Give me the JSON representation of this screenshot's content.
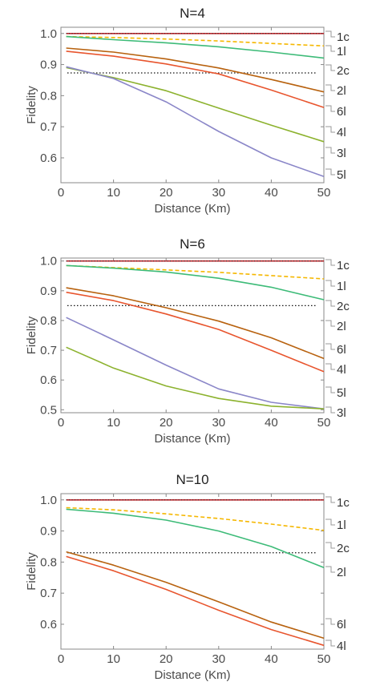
{
  "chart_data": [
    {
      "type": "line",
      "title": "N=4",
      "xlabel": "Distance (Km)",
      "ylabel": "Fidelity",
      "xlim": [
        0,
        50
      ],
      "ylim": [
        0.52,
        1.02
      ],
      "xticks": [
        0,
        10,
        20,
        30,
        40,
        50
      ],
      "yticks": [
        0.6,
        0.7,
        0.8,
        0.9,
        1.0
      ],
      "ytick_labels": [
        "0.6",
        "0.7",
        "0.8",
        "0.9",
        "1.0"
      ],
      "grid": false,
      "legend_position": "right of plot, labels at line ends",
      "threshold": 0.873,
      "series": [
        {
          "name": "1c",
          "color": "#c0282e",
          "dash": "solid",
          "x": [
            1,
            50
          ],
          "y": [
            1.0,
            1.0
          ]
        },
        {
          "name": "1l",
          "color": "#f5b700",
          "dash": "dashed",
          "x": [
            1,
            10,
            20,
            30,
            40,
            50
          ],
          "y": [
            0.99,
            0.987,
            0.982,
            0.976,
            0.968,
            0.96
          ]
        },
        {
          "name": "2c",
          "color": "#3dbb78",
          "dash": "solid",
          "x": [
            1,
            10,
            20,
            30,
            40,
            50
          ],
          "y": [
            0.99,
            0.98,
            0.97,
            0.957,
            0.94,
            0.921
          ]
        },
        {
          "name": "2l",
          "color": "#b8620f",
          "dash": "solid",
          "x": [
            1,
            10,
            20,
            30,
            40,
            50
          ],
          "y": [
            0.953,
            0.94,
            0.918,
            0.889,
            0.852,
            0.812
          ]
        },
        {
          "name": "6l",
          "color": "#e8552e",
          "dash": "solid",
          "x": [
            1,
            10,
            20,
            30,
            40,
            50
          ],
          "y": [
            0.943,
            0.927,
            0.902,
            0.87,
            0.818,
            0.762
          ]
        },
        {
          "name": "4l",
          "color": "#8cb22e",
          "dash": "solid",
          "x": [
            1,
            10,
            20,
            30,
            40,
            50
          ],
          "y": [
            0.89,
            0.858,
            0.816,
            0.76,
            0.705,
            0.652
          ]
        },
        {
          "name": "3l",
          "color": "#8a86c8",
          "dash": "solid",
          "x": [
            1,
            10,
            20,
            30,
            40,
            50
          ],
          "y": [
            0.893,
            0.855,
            0.78,
            0.685,
            0.6,
            0.54
          ]
        },
        {
          "name": "5l",
          "color": "#8a86c8",
          "dash": "solid",
          "x": [],
          "y": []
        }
      ],
      "legend_labels": [
        "1c",
        "1l",
        "2c",
        "2l",
        "6l",
        "4l",
        "3l",
        "5l"
      ]
    },
    {
      "type": "line",
      "title": "N=6",
      "xlabel": "Distance (Km)",
      "ylabel": "Fidelity",
      "xlim": [
        0,
        50
      ],
      "ylim": [
        0.49,
        1.01
      ],
      "xticks": [
        0,
        10,
        20,
        30,
        40,
        50
      ],
      "yticks": [
        0.5,
        0.6,
        0.7,
        0.8,
        0.9,
        1.0
      ],
      "ytick_labels": [
        "0.5",
        "0.6",
        "0.7",
        "0.8",
        "0.9",
        "1.0"
      ],
      "grid": false,
      "legend_position": "right of plot, labels at line ends",
      "threshold": 0.85,
      "series": [
        {
          "name": "1c",
          "color": "#c0282e",
          "dash": "solid",
          "x": [
            1,
            50
          ],
          "y": [
            1.0,
            1.0
          ]
        },
        {
          "name": "1l",
          "color": "#f5b700",
          "dash": "dashed",
          "x": [
            1,
            10,
            20,
            30,
            40,
            50
          ],
          "y": [
            0.985,
            0.978,
            0.97,
            0.962,
            0.951,
            0.94
          ]
        },
        {
          "name": "2c",
          "color": "#3dbb78",
          "dash": "solid",
          "x": [
            1,
            10,
            20,
            30,
            40,
            50
          ],
          "y": [
            0.985,
            0.976,
            0.963,
            0.942,
            0.912,
            0.87
          ]
        },
        {
          "name": "2l",
          "color": "#b8620f",
          "dash": "solid",
          "x": [
            1,
            10,
            20,
            30,
            40,
            50
          ],
          "y": [
            0.91,
            0.883,
            0.843,
            0.798,
            0.742,
            0.672
          ]
        },
        {
          "name": "6l",
          "color": "#e8552e",
          "dash": "solid",
          "x": [
            1,
            10,
            20,
            30,
            40,
            50
          ],
          "y": [
            0.895,
            0.867,
            0.822,
            0.77,
            0.7,
            0.628
          ]
        },
        {
          "name": "4l",
          "color": "#8a86c8",
          "dash": "solid",
          "x": [
            1,
            10,
            20,
            30,
            40,
            50
          ],
          "y": [
            0.81,
            0.735,
            0.65,
            0.57,
            0.525,
            0.503
          ]
        },
        {
          "name": "5l",
          "color": "#8cb22e",
          "dash": "solid",
          "x": [
            1,
            10,
            20,
            30,
            40,
            50
          ],
          "y": [
            0.71,
            0.64,
            0.58,
            0.538,
            0.512,
            0.503
          ]
        },
        {
          "name": "3l",
          "color": "#8cb22e",
          "dash": "solid",
          "x": [],
          "y": []
        }
      ],
      "legend_labels": [
        "1c",
        "1l",
        "2c",
        "2l",
        "6l",
        "4l",
        "5l",
        "3l"
      ]
    },
    {
      "type": "line",
      "title": "N=10",
      "xlabel": "Distance (Km)",
      "ylabel": "Fidelity",
      "xlim": [
        0,
        50
      ],
      "ylim": [
        0.52,
        1.02
      ],
      "xticks": [
        0,
        10,
        20,
        30,
        40,
        50
      ],
      "yticks": [
        0.6,
        0.7,
        0.8,
        0.9,
        1.0
      ],
      "ytick_labels": [
        "0.6",
        "0.7",
        "0.8",
        "0.9",
        "1.0"
      ],
      "grid": false,
      "legend_position": "right of plot, labels at line ends",
      "threshold": 0.83,
      "series": [
        {
          "name": "1c",
          "color": "#c0282e",
          "dash": "solid",
          "x": [
            1,
            50
          ],
          "y": [
            1.0,
            1.0
          ]
        },
        {
          "name": "1l",
          "color": "#f5b700",
          "dash": "dashed",
          "x": [
            1,
            10,
            20,
            30,
            40,
            50
          ],
          "y": [
            0.975,
            0.968,
            0.955,
            0.94,
            0.922,
            0.902
          ]
        },
        {
          "name": "2c",
          "color": "#3dbb78",
          "dash": "solid",
          "x": [
            1,
            10,
            20,
            30,
            40,
            50
          ],
          "y": [
            0.97,
            0.957,
            0.935,
            0.9,
            0.85,
            0.782
          ]
        },
        {
          "name": "2l",
          "color": "#b8620f",
          "dash": "solid",
          "x": [
            1,
            10,
            20,
            30,
            40,
            50
          ],
          "y": [
            0.833,
            0.79,
            0.735,
            0.672,
            0.607,
            0.555
          ]
        },
        {
          "name": "6l",
          "color": "#e8552e",
          "dash": "solid",
          "x": [
            1,
            10,
            20,
            30,
            40,
            50
          ],
          "y": [
            0.818,
            0.772,
            0.712,
            0.645,
            0.583,
            0.532
          ]
        },
        {
          "name": "4l",
          "color": "#e8552e",
          "dash": "solid",
          "x": [],
          "y": []
        }
      ],
      "legend_labels": [
        "1c",
        "1l",
        "2c",
        "2l",
        "6l",
        "4l"
      ]
    }
  ]
}
